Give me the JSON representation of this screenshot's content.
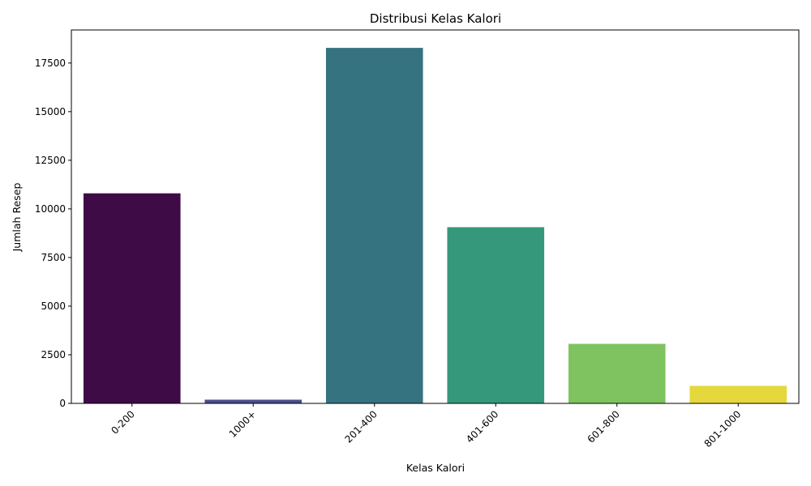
{
  "chart_data": {
    "type": "bar",
    "title": "Distribusi Kelas Kalori",
    "xlabel": "Kelas Kalori",
    "ylabel": "Jumlah Resep",
    "categories": [
      "0-200",
      "1000+",
      "201-400",
      "401-600",
      "601-800",
      "801-1000"
    ],
    "values": [
      10800,
      190,
      18280,
      9060,
      3060,
      900
    ],
    "colors": [
      "#3e0b47",
      "#4a4f8a",
      "#367380",
      "#35987b",
      "#7ec35f",
      "#e4d83c"
    ],
    "ylim": [
      0,
      19200
    ],
    "yticks": [
      0,
      2500,
      5000,
      7500,
      10000,
      12500,
      15000,
      17500
    ],
    "grid": false,
    "legend": "none"
  }
}
